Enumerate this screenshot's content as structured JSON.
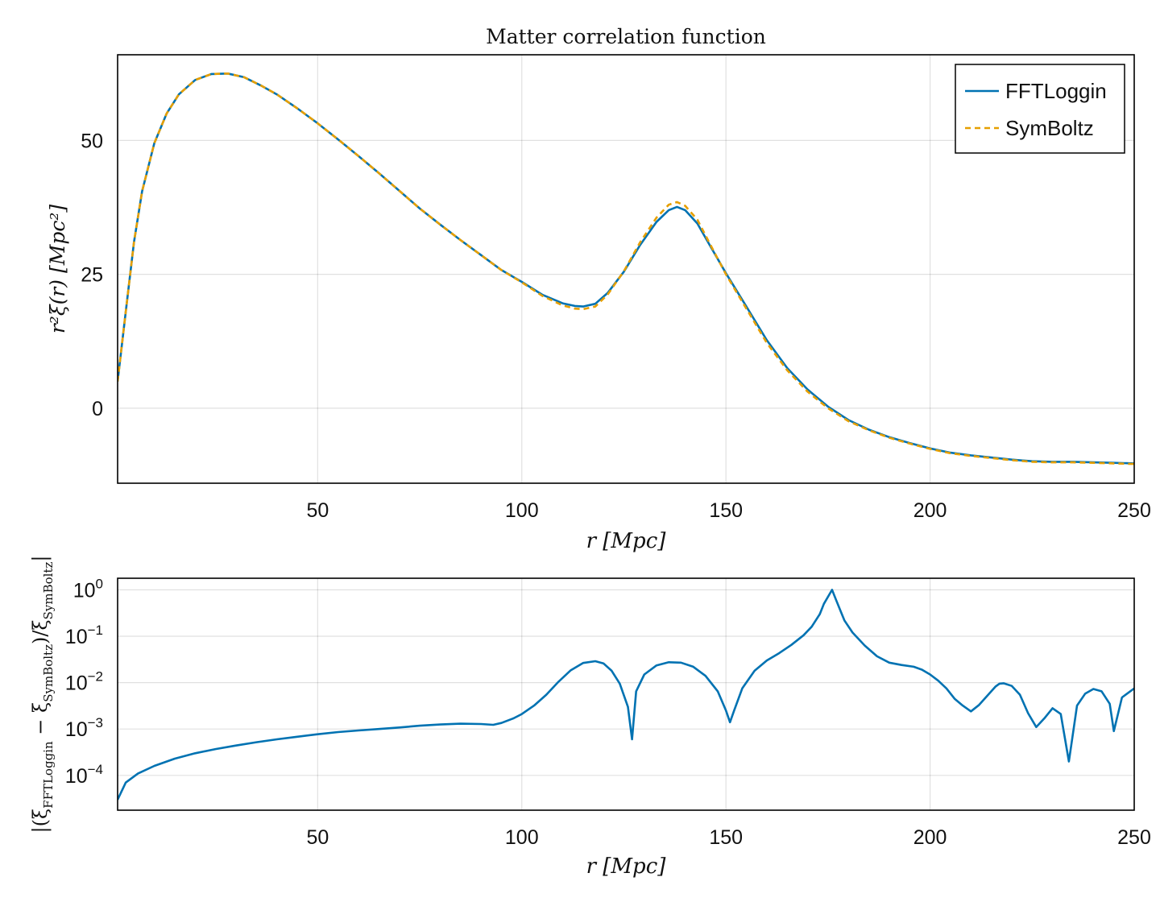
{
  "chart_data": [
    {
      "type": "line",
      "title": "Matter correlation function",
      "xlabel": "r [Mpc]",
      "ylabel": "r²ξ(r) [Mpc²]",
      "xlim": [
        1,
        250
      ],
      "ylim": [
        -14,
        66
      ],
      "grid": true,
      "legend_position": "top-right",
      "x_ticks": [
        50,
        100,
        150,
        200,
        250
      ],
      "y_ticks": [
        0,
        25,
        50
      ],
      "x": [
        1,
        3,
        5,
        7,
        10,
        13,
        16,
        20,
        24,
        28,
        32,
        36,
        40,
        45,
        50,
        55,
        60,
        65,
        70,
        75,
        80,
        85,
        90,
        95,
        100,
        105,
        110,
        113,
        115,
        118,
        121,
        125,
        129,
        133,
        136,
        138,
        140,
        143,
        146,
        150,
        155,
        160,
        165,
        170,
        175,
        180,
        185,
        190,
        195,
        200,
        205,
        210,
        215,
        220,
        225,
        230,
        235,
        240,
        245,
        250
      ],
      "series": [
        {
          "name": "FFTLoggin",
          "color": "#0072b2",
          "dash": "solid",
          "values": [
            5.0,
            18.0,
            31.0,
            40.5,
            49.5,
            55.0,
            58.6,
            61.3,
            62.4,
            62.5,
            61.8,
            60.3,
            58.6,
            56.0,
            53.2,
            50.2,
            47.1,
            43.9,
            40.6,
            37.3,
            34.3,
            31.4,
            28.6,
            25.8,
            23.6,
            21.2,
            19.6,
            19.1,
            19.0,
            19.5,
            21.5,
            25.5,
            30.5,
            34.8,
            37.0,
            37.6,
            37.0,
            34.5,
            30.5,
            25.2,
            19.0,
            12.7,
            7.5,
            3.5,
            0.3,
            -2.2,
            -4.0,
            -5.4,
            -6.5,
            -7.5,
            -8.3,
            -8.8,
            -9.2,
            -9.6,
            -9.9,
            -10.0,
            -10.0,
            -10.1,
            -10.2,
            -10.3
          ]
        },
        {
          "name": "SymBoltz",
          "color": "#e69f00",
          "dash": "dashed",
          "values": [
            5.0,
            18.0,
            31.0,
            40.5,
            49.5,
            55.0,
            58.6,
            61.3,
            62.4,
            62.5,
            61.8,
            60.3,
            58.6,
            56.0,
            53.2,
            50.2,
            47.1,
            43.9,
            40.6,
            37.3,
            34.3,
            31.4,
            28.6,
            25.8,
            23.5,
            21.0,
            19.2,
            18.6,
            18.5,
            19.0,
            21.2,
            25.6,
            31.0,
            35.6,
            38.0,
            38.5,
            37.8,
            35.2,
            30.8,
            25.0,
            18.6,
            12.2,
            7.1,
            3.1,
            0.0,
            -2.4,
            -4.1,
            -5.5,
            -6.6,
            -7.6,
            -8.4,
            -8.9,
            -9.3,
            -9.7,
            -10.0,
            -10.1,
            -10.1,
            -10.2,
            -10.3,
            -10.4
          ]
        }
      ]
    },
    {
      "type": "line",
      "title": "",
      "xlabel": "r [Mpc]",
      "ylabel": "|(ξFFTLoggin − ξSymBoltz)/ξSymBoltz|",
      "ylabel_parts": {
        "open": "|(ξ",
        "sub1": "FFTLoggin",
        "minus": " − ξ",
        "sub2": "SymBoltz",
        "slash": ")/ξ",
        "sub3": "SymBoltz",
        "close": "|"
      },
      "yscale": "log",
      "xlim": [
        1,
        250
      ],
      "ylim_log10": [
        -4.75,
        0.25
      ],
      "grid": true,
      "x_ticks": [
        50,
        100,
        150,
        200,
        250
      ],
      "y_tick_exponents": [
        0,
        -1,
        -2,
        -3,
        -4
      ],
      "y_tick_base": "10",
      "x": [
        1,
        3,
        6,
        10,
        15,
        20,
        25,
        30,
        35,
        40,
        45,
        50,
        55,
        60,
        65,
        70,
        75,
        80,
        85,
        90,
        93,
        95,
        98,
        100,
        103,
        106,
        109,
        112,
        115,
        118,
        120,
        122,
        124,
        126,
        127,
        128,
        130,
        133,
        136,
        139,
        142,
        145,
        148,
        150,
        151,
        152,
        154,
        157,
        160,
        163,
        166,
        169,
        171,
        173,
        174,
        176,
        177,
        179,
        181,
        184,
        187,
        190,
        193,
        196,
        198,
        200,
        202,
        204,
        206,
        208,
        210,
        212,
        214,
        216,
        217,
        218,
        220,
        222,
        224,
        226,
        228,
        230,
        232,
        234,
        236,
        238,
        240,
        242,
        244,
        245,
        247,
        250
      ],
      "series": [
        {
          "name": "",
          "color": "#0072b2",
          "dash": "solid",
          "values": [
            3e-05,
            7e-05,
            0.00011,
            0.00016,
            0.00023,
            0.0003,
            0.00037,
            0.00044,
            0.00052,
            0.0006,
            0.00068,
            0.00077,
            0.00086,
            0.00093,
            0.001,
            0.00108,
            0.00118,
            0.00125,
            0.0013,
            0.00128,
            0.00123,
            0.00135,
            0.0017,
            0.0021,
            0.0032,
            0.0055,
            0.0105,
            0.0185,
            0.0265,
            0.029,
            0.026,
            0.018,
            0.0095,
            0.003,
            0.0006,
            0.0065,
            0.015,
            0.0235,
            0.0275,
            0.027,
            0.022,
            0.014,
            0.0065,
            0.0025,
            0.0014,
            0.0025,
            0.0075,
            0.018,
            0.03,
            0.043,
            0.065,
            0.105,
            0.16,
            0.3,
            0.5,
            1.0,
            0.6,
            0.22,
            0.12,
            0.063,
            0.037,
            0.027,
            0.024,
            0.022,
            0.019,
            0.015,
            0.011,
            0.0075,
            0.0045,
            0.0032,
            0.0024,
            0.0033,
            0.0052,
            0.0082,
            0.0095,
            0.0097,
            0.0085,
            0.0055,
            0.0022,
            0.0011,
            0.0017,
            0.0028,
            0.0021,
            0.0002,
            0.0032,
            0.0058,
            0.0073,
            0.0065,
            0.0035,
            0.0009,
            0.0048,
            0.0075
          ]
        }
      ]
    }
  ]
}
